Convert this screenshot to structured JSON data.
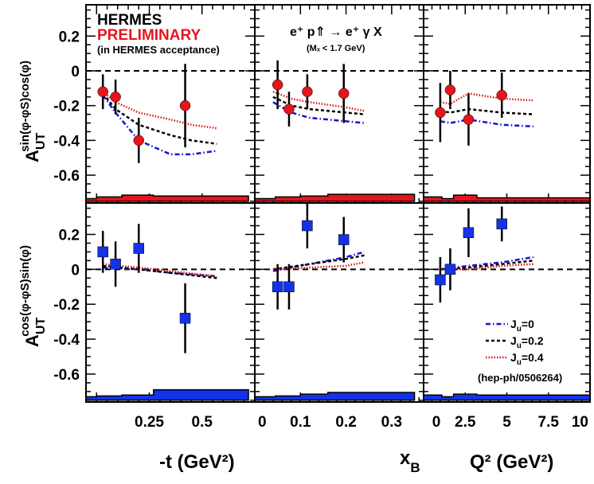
{
  "header": {
    "experiment": "HERMES",
    "status": "PRELIMINARY",
    "acceptance": "(in HERMES acceptance)",
    "reaction": "e⁺ p⇑ → e⁺ γ X",
    "mass_cut": "(Mₓ < 1.7 GeV)"
  },
  "colors": {
    "red_marker": "#e8141b",
    "blue_marker": "#1432e6",
    "model_ju0": "#1414d2",
    "model_ju02": "#000000",
    "model_ju04": "#dc1414"
  },
  "ylabels": {
    "top": "A_UT^{sin(φ-φS)cos(φ)}",
    "bottom": "A_UT^{cos(φ-φS)sin(φ)}"
  },
  "legend": {
    "position": "bottom-right of bottom-right panel",
    "entries": [
      "J_u=0",
      "J_u=0.2",
      "J_u=0.4"
    ],
    "reference": "(hep-ph/0506264)"
  },
  "chart_data": [
    {
      "type": "scatter",
      "panel": "top-left",
      "marker": "circle",
      "x": [
        0.03,
        0.09,
        0.2,
        0.42
      ],
      "y": [
        -0.12,
        -0.15,
        -0.4,
        -0.2
      ],
      "yerr": [
        0.1,
        0.1,
        0.13,
        0.24
      ],
      "xlim": [
        -0.05,
        0.75
      ],
      "ylim": [
        -0.76,
        0.38
      ],
      "yticks": [
        "0.2",
        "0",
        "-0.2",
        "-0.4",
        "-0.6"
      ],
      "xticks": [],
      "xlabel": "",
      "band_steps": [
        [
          -0.05,
          0.0,
          0.015
        ],
        [
          0.0,
          0.12,
          0.025
        ],
        [
          0.12,
          0.27,
          0.035
        ],
        [
          0.27,
          0.72,
          0.03
        ]
      ],
      "models": [
        {
          "name": "J_u=0",
          "x": [
            0.03,
            0.09,
            0.2,
            0.35,
            0.45,
            0.57
          ],
          "y": [
            -0.14,
            -0.24,
            -0.4,
            -0.48,
            -0.48,
            -0.46
          ]
        },
        {
          "name": "J_u=0.2",
          "x": [
            0.03,
            0.09,
            0.2,
            0.35,
            0.45,
            0.57
          ],
          "y": [
            -0.13,
            -0.22,
            -0.31,
            -0.37,
            -0.4,
            -0.42
          ]
        },
        {
          "name": "J_u=0.4",
          "x": [
            0.03,
            0.09,
            0.2,
            0.35,
            0.45,
            0.57
          ],
          "y": [
            -0.12,
            -0.18,
            -0.24,
            -0.28,
            -0.31,
            -0.33
          ]
        }
      ]
    },
    {
      "type": "scatter",
      "panel": "top-middle",
      "marker": "circle",
      "x": [
        0.05,
        0.075,
        0.115,
        0.195
      ],
      "y": [
        -0.08,
        -0.22,
        -0.12,
        -0.13
      ],
      "yerr": [
        0.14,
        0.1,
        0.1,
        0.17
      ],
      "xlim": [
        0,
        0.37
      ],
      "ylim": [
        -0.76,
        0.38
      ],
      "yticks": [],
      "xticks": [],
      "xlabel": "",
      "band_steps": [
        [
          0.0,
          0.045,
          0.015
        ],
        [
          0.045,
          0.1,
          0.025
        ],
        [
          0.1,
          0.16,
          0.03
        ],
        [
          0.16,
          0.35,
          0.04
        ]
      ],
      "models": [
        {
          "name": "J_u=0",
          "x": [
            0.04,
            0.08,
            0.12,
            0.2,
            0.24
          ],
          "y": [
            -0.18,
            -0.24,
            -0.27,
            -0.29,
            -0.3
          ]
        },
        {
          "name": "J_u=0.2",
          "x": [
            0.04,
            0.08,
            0.12,
            0.2,
            0.24
          ],
          "y": [
            -0.15,
            -0.2,
            -0.22,
            -0.24,
            -0.25
          ]
        },
        {
          "name": "J_u=0.4",
          "x": [
            0.04,
            0.08,
            0.12,
            0.2,
            0.24
          ],
          "y": [
            -0.12,
            -0.16,
            -0.18,
            -0.21,
            -0.23
          ]
        }
      ]
    },
    {
      "type": "scatter",
      "panel": "top-right",
      "marker": "circle",
      "x": [
        1.0,
        1.6,
        2.7,
        4.7
      ],
      "y": [
        -0.24,
        -0.11,
        -0.28,
        -0.14
      ],
      "yerr": [
        0.17,
        0.11,
        0.15,
        0.13
      ],
      "xlim": [
        0,
        10
      ],
      "ylim": [
        -0.76,
        0.38
      ],
      "yticks": [],
      "xticks": [],
      "xlabel": "",
      "band_steps": [
        [
          0.0,
          1.1,
          0.025
        ],
        [
          1.1,
          1.8,
          0.015
        ],
        [
          1.8,
          3.2,
          0.035
        ],
        [
          3.2,
          10,
          0.02
        ]
      ],
      "models": [
        {
          "name": "J_u=0",
          "x": [
            1.0,
            1.6,
            2.7,
            4.7,
            6.6
          ],
          "y": [
            -0.29,
            -0.3,
            -0.28,
            -0.31,
            -0.32
          ]
        },
        {
          "name": "J_u=0.2",
          "x": [
            1.0,
            1.6,
            2.7,
            4.7,
            6.6
          ],
          "y": [
            -0.23,
            -0.24,
            -0.22,
            -0.24,
            -0.25
          ]
        },
        {
          "name": "J_u=0.4",
          "x": [
            1.0,
            1.6,
            2.7,
            4.7,
            6.6
          ],
          "y": [
            -0.18,
            -0.19,
            -0.13,
            -0.16,
            -0.17
          ]
        }
      ]
    },
    {
      "type": "scatter",
      "panel": "bottom-left",
      "marker": "square",
      "x": [
        0.03,
        0.09,
        0.2,
        0.42
      ],
      "y": [
        0.1,
        0.03,
        0.12,
        -0.28
      ],
      "yerr": [
        0.12,
        0.13,
        0.14,
        0.2
      ],
      "xlim": [
        -0.05,
        0.75
      ],
      "ylim": [
        -0.76,
        0.38
      ],
      "yticks": [
        "0.2",
        "0",
        "-0.2",
        "-0.4",
        "-0.6"
      ],
      "xticks": [
        "0.25",
        "0.5"
      ],
      "xlabel": "-t (GeV²)",
      "band_steps": [
        [
          -0.05,
          0.0,
          0.02
        ],
        [
          0.0,
          0.12,
          0.025
        ],
        [
          0.12,
          0.27,
          0.03
        ],
        [
          0.27,
          0.72,
          0.06
        ]
      ],
      "models": [
        {
          "name": "J_u=0",
          "x": [
            0.03,
            0.2,
            0.35,
            0.57
          ],
          "y": [
            0.01,
            0.0,
            -0.02,
            -0.04
          ]
        },
        {
          "name": "J_u=0.2",
          "x": [
            0.03,
            0.2,
            0.35,
            0.57
          ],
          "y": [
            0.02,
            0.0,
            -0.02,
            -0.05
          ]
        },
        {
          "name": "J_u=0.4",
          "x": [
            0.03,
            0.2,
            0.35,
            0.57
          ],
          "y": [
            0.03,
            0.01,
            -0.01,
            -0.04
          ]
        }
      ]
    },
    {
      "type": "scatter",
      "panel": "bottom-middle",
      "marker": "square",
      "x": [
        0.05,
        0.075,
        0.115,
        0.195
      ],
      "y": [
        -0.1,
        -0.1,
        0.25,
        0.17
      ],
      "yerr": [
        0.13,
        0.13,
        0.13,
        0.13
      ],
      "xlim": [
        0,
        0.37
      ],
      "ylim": [
        -0.76,
        0.38
      ],
      "yticks": [],
      "xticks": [
        "0",
        "0.1",
        "0.2",
        "0.3"
      ],
      "xlabel": "x_B",
      "band_steps": [
        [
          0.0,
          0.045,
          0.02
        ],
        [
          0.045,
          0.1,
          0.025
        ],
        [
          0.1,
          0.16,
          0.035
        ],
        [
          0.16,
          0.35,
          0.045
        ]
      ],
      "models": [
        {
          "name": "J_u=0",
          "x": [
            0.04,
            0.12,
            0.2,
            0.24
          ],
          "y": [
            -0.01,
            0.03,
            0.07,
            0.1
          ]
        },
        {
          "name": "J_u=0.2",
          "x": [
            0.04,
            0.12,
            0.2,
            0.24
          ],
          "y": [
            0.0,
            0.03,
            0.06,
            0.08
          ]
        },
        {
          "name": "J_u=0.4",
          "x": [
            0.04,
            0.12,
            0.2,
            0.24
          ],
          "y": [
            0.0,
            0.01,
            0.02,
            0.04
          ]
        }
      ]
    },
    {
      "type": "scatter",
      "panel": "bottom-right",
      "marker": "square",
      "x": [
        1.0,
        1.6,
        2.7,
        4.7
      ],
      "y": [
        -0.06,
        0.0,
        0.21,
        0.26
      ],
      "yerr": [
        0.13,
        0.12,
        0.14,
        0.1
      ],
      "xlim": [
        0,
        10
      ],
      "ylim": [
        -0.76,
        0.38
      ],
      "yticks": [],
      "xticks": [
        "0",
        "2.5",
        "5",
        "7.5",
        "10"
      ],
      "xlabel": "Q² (GeV²)",
      "band_steps": [
        [
          0.0,
          1.1,
          0.03
        ],
        [
          1.1,
          1.8,
          0.02
        ],
        [
          1.8,
          3.2,
          0.035
        ],
        [
          3.2,
          10,
          0.03
        ]
      ],
      "models": [
        {
          "name": "J_u=0",
          "x": [
            1.0,
            2.7,
            4.7,
            6.6
          ],
          "y": [
            0.0,
            0.02,
            0.04,
            0.07
          ]
        },
        {
          "name": "J_u=0.2",
          "x": [
            1.0,
            2.7,
            4.7,
            6.6
          ],
          "y": [
            0.0,
            0.01,
            0.03,
            0.05
          ]
        },
        {
          "name": "J_u=0.4",
          "x": [
            1.0,
            2.7,
            4.7,
            6.6
          ],
          "y": [
            0.0,
            0.0,
            0.02,
            0.03
          ]
        }
      ]
    }
  ]
}
